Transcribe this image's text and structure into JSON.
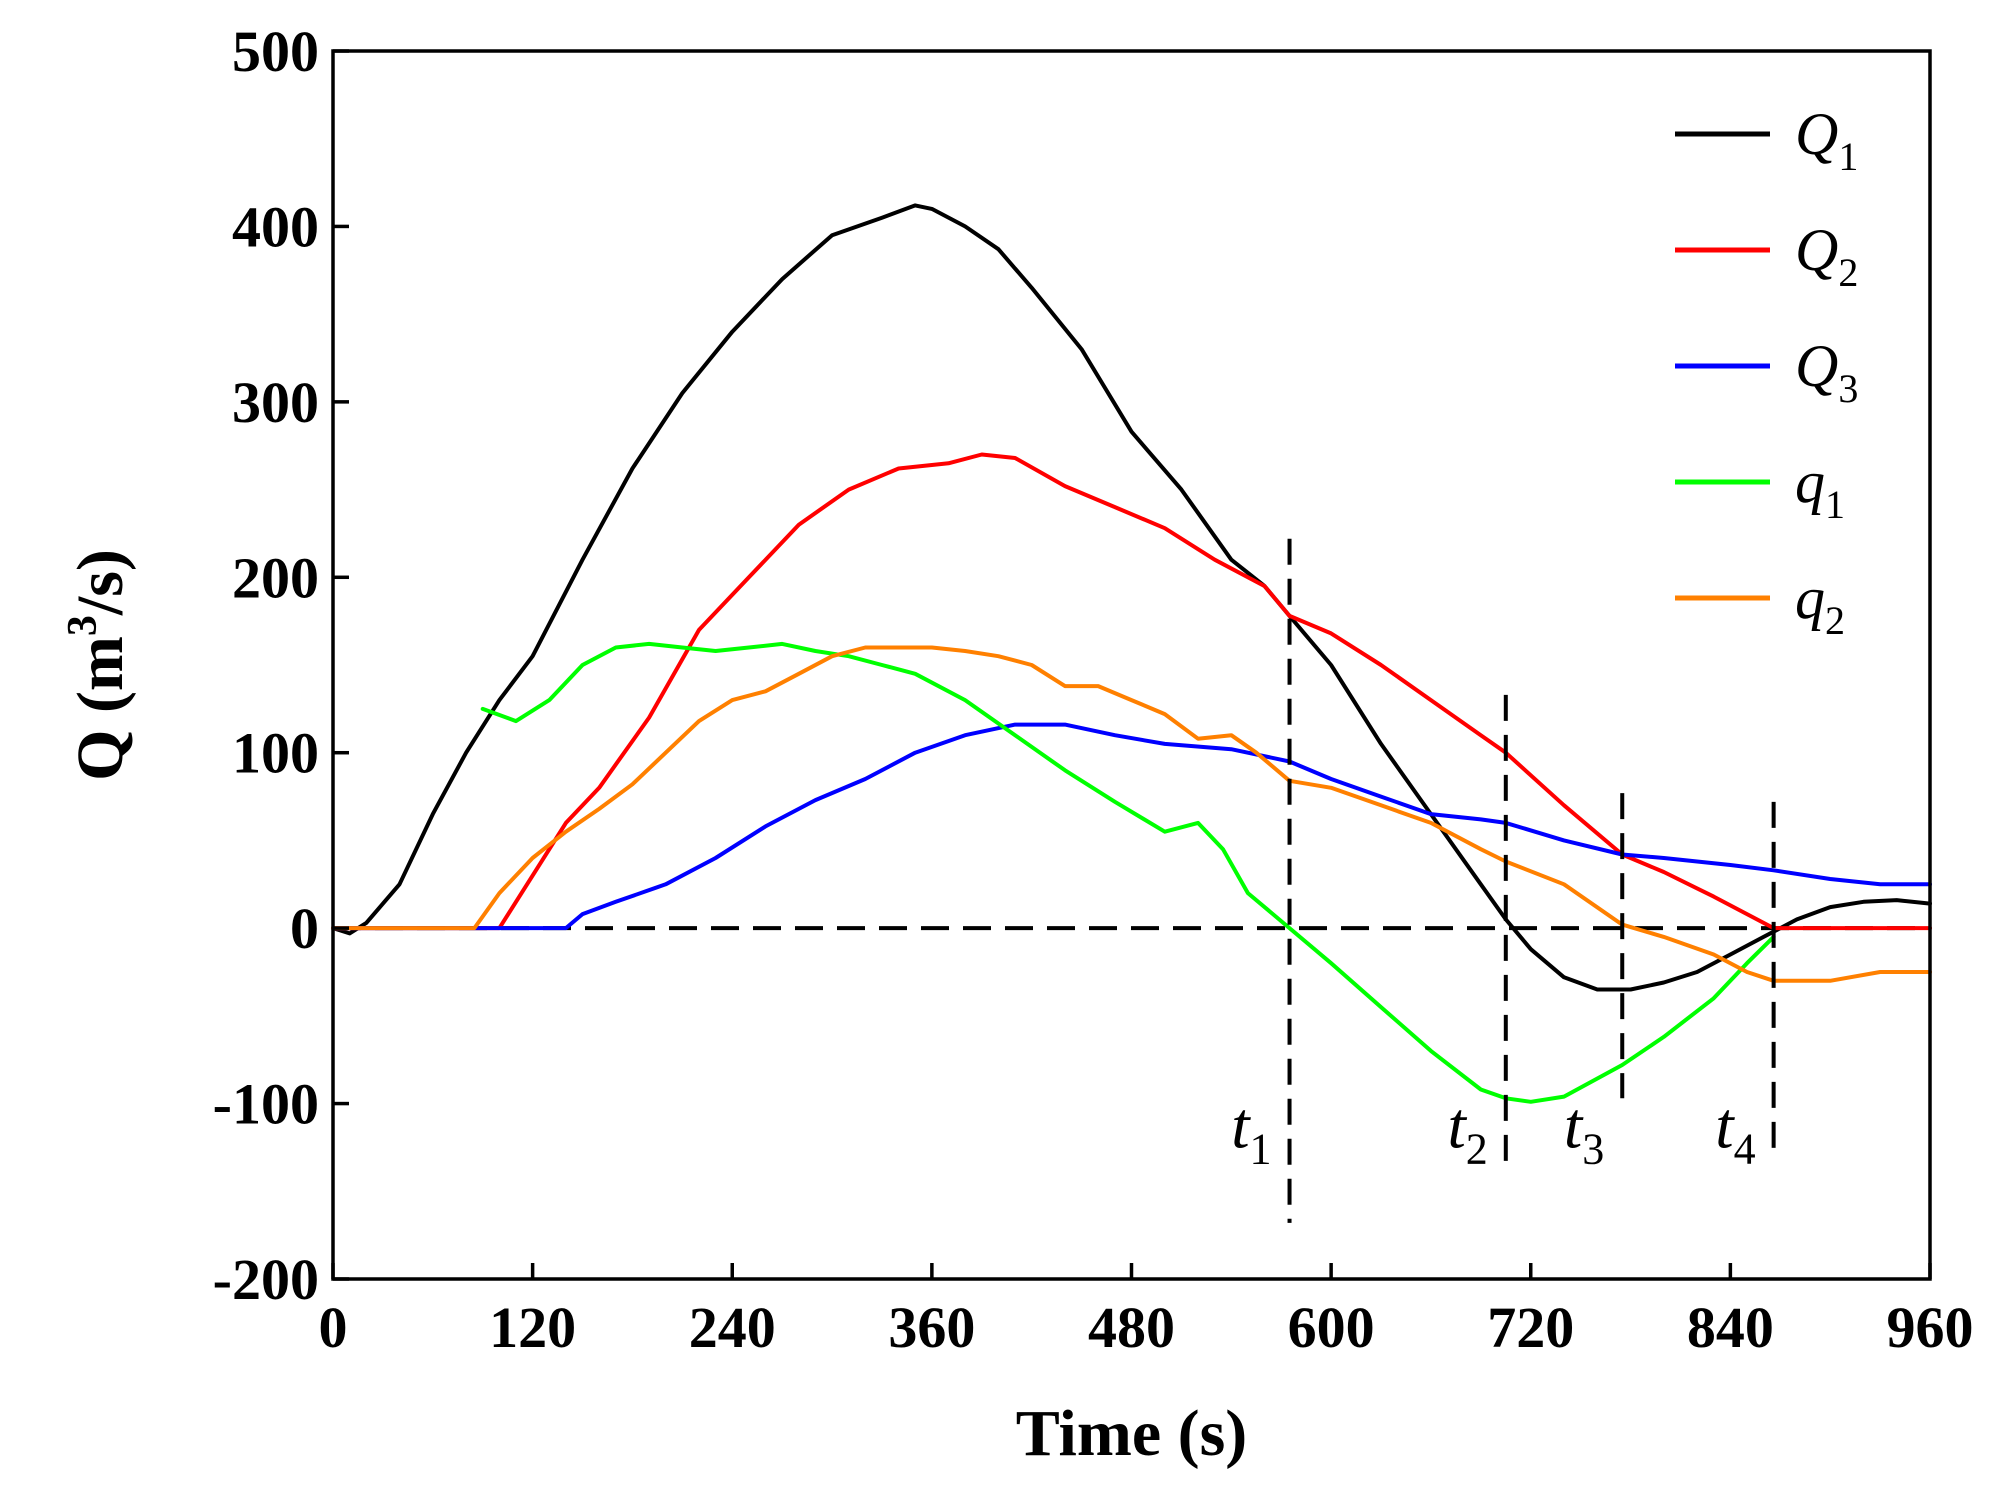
{
  "chart_data": {
    "type": "line",
    "xlabel": "Time (s)",
    "ylabel_main": "Q (m",
    "ylabel_sup": "3",
    "ylabel_tail": "/s)",
    "xlim": [
      0,
      960
    ],
    "ylim": [
      -200,
      500
    ],
    "xticks": [
      0,
      120,
      240,
      360,
      480,
      600,
      720,
      840,
      960
    ],
    "yticks": [
      500,
      400,
      300,
      200,
      100,
      0,
      -100,
      -200
    ],
    "grid": false,
    "legend_position": "top-right",
    "zero_line": {
      "y": 0,
      "style": "dashed"
    },
    "series": [
      {
        "name": "Q",
        "sub": "1",
        "color": "#000000",
        "x": [
          0,
          10,
          20,
          40,
          60,
          80,
          100,
          120,
          150,
          180,
          210,
          240,
          270,
          300,
          330,
          350,
          360,
          380,
          400,
          420,
          450,
          480,
          510,
          540,
          560,
          575,
          600,
          630,
          660,
          690,
          705,
          720,
          740,
          760,
          780,
          800,
          820,
          840,
          860,
          880,
          900,
          920,
          940,
          960
        ],
        "y": [
          0,
          -3,
          3,
          25,
          65,
          100,
          130,
          155,
          210,
          262,
          305,
          340,
          370,
          395,
          405,
          412,
          410,
          400,
          387,
          365,
          330,
          283,
          250,
          210,
          195,
          178,
          150,
          105,
          65,
          25,
          5,
          -12,
          -28,
          -35,
          -35,
          -31,
          -25,
          -15,
          -5,
          5,
          12,
          15,
          16,
          14
        ]
      },
      {
        "name": "Q",
        "sub": "2",
        "color": "#ff0000",
        "x": [
          0,
          100,
          140,
          160,
          190,
          220,
          250,
          280,
          310,
          340,
          370,
          390,
          410,
          440,
          470,
          500,
          530,
          560,
          575,
          600,
          630,
          660,
          690,
          705,
          740,
          775,
          800,
          830,
          850,
          866,
          900,
          960
        ],
        "y": [
          0,
          0,
          60,
          80,
          120,
          170,
          200,
          230,
          250,
          262,
          265,
          270,
          268,
          252,
          240,
          228,
          210,
          195,
          178,
          168,
          150,
          130,
          110,
          100,
          70,
          42,
          32,
          18,
          8,
          0,
          0,
          0
        ]
      },
      {
        "name": "Q",
        "sub": "3",
        "color": "#0000ff",
        "x": [
          0,
          140,
          150,
          170,
          200,
          230,
          260,
          290,
          320,
          350,
          380,
          410,
          440,
          470,
          500,
          540,
          575,
          600,
          630,
          660,
          690,
          705,
          740,
          775,
          800,
          840,
          866,
          900,
          930,
          960
        ],
        "y": [
          0,
          0,
          8,
          15,
          25,
          40,
          58,
          73,
          85,
          100,
          110,
          116,
          116,
          110,
          105,
          102,
          95,
          85,
          75,
          65,
          62,
          60,
          50,
          42,
          40,
          36,
          33,
          28,
          25,
          25
        ]
      },
      {
        "name": "q",
        "sub": "1",
        "color": "#00ff00",
        "x": [
          90,
          110,
          130,
          150,
          170,
          190,
          210,
          230,
          250,
          270,
          290,
          310,
          330,
          350,
          380,
          410,
          440,
          470,
          500,
          520,
          535,
          550,
          575,
          600,
          630,
          660,
          690,
          705,
          720,
          740,
          775,
          800,
          830,
          850,
          866
        ],
        "y": [
          125,
          118,
          130,
          150,
          160,
          162,
          160,
          158,
          160,
          162,
          158,
          155,
          150,
          145,
          130,
          110,
          90,
          72,
          55,
          60,
          45,
          20,
          0,
          -20,
          -45,
          -70,
          -92,
          -97,
          -99,
          -96,
          -78,
          -62,
          -40,
          -20,
          -5
        ]
      },
      {
        "name": "q",
        "sub": "2",
        "color": "#ff8000",
        "x": [
          0,
          85,
          100,
          120,
          140,
          160,
          180,
          200,
          220,
          240,
          260,
          280,
          300,
          320,
          340,
          360,
          380,
          400,
          420,
          440,
          460,
          480,
          500,
          520,
          540,
          555,
          575,
          600,
          630,
          660,
          690,
          705,
          740,
          775,
          800,
          830,
          850,
          866,
          900,
          930,
          960
        ],
        "y": [
          0,
          0,
          20,
          40,
          55,
          68,
          82,
          100,
          118,
          130,
          135,
          145,
          155,
          160,
          160,
          160,
          158,
          155,
          150,
          138,
          138,
          130,
          122,
          108,
          110,
          100,
          84,
          80,
          70,
          60,
          45,
          38,
          25,
          2,
          -5,
          -15,
          -25,
          -30,
          -30,
          -25,
          -25
        ]
      }
    ],
    "markers": [
      {
        "label": "t",
        "sub": "1",
        "x": 575,
        "y_top": 222,
        "y_bottom": -168
      },
      {
        "label": "t",
        "sub": "2",
        "x": 705,
        "y_top": 133,
        "y_bottom": -140
      },
      {
        "label": "t",
        "sub": "3",
        "x": 775,
        "y_top": 77,
        "y_bottom": -97
      },
      {
        "label": "t",
        "sub": "4",
        "x": 866,
        "y_top": 72,
        "y_bottom": -128
      }
    ]
  }
}
